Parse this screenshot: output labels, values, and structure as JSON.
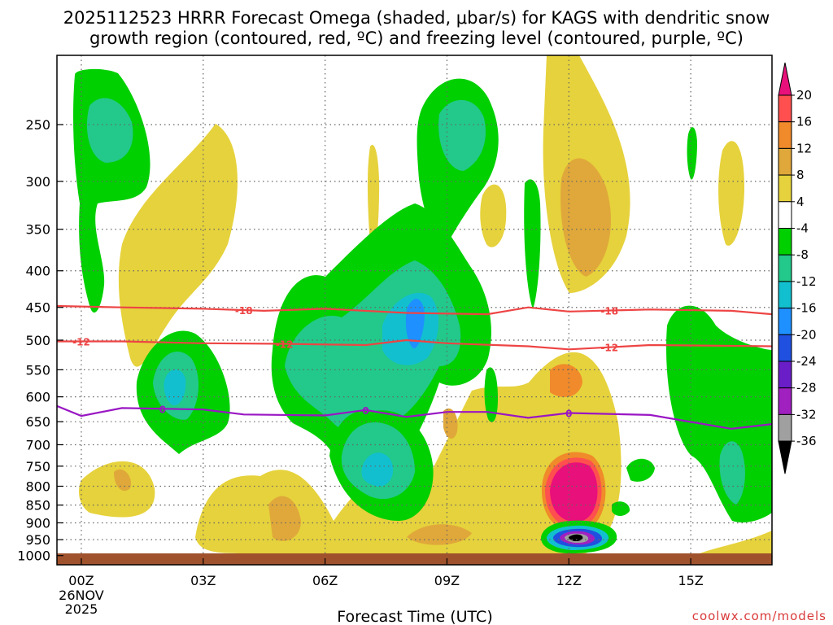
{
  "chart_data": {
    "type": "heatmap",
    "title_line1": "2025112523 HRRR Forecast Omega (shaded, μbar/s) for KAGS with dendritic snow",
    "title_line2": "growth region (contoured, red, ºC) and freezing level (contoured, purple, ºC)",
    "xlabel": "Forecast Time (UTC)",
    "credit": "coolwx.com/models",
    "x_ticks": [
      {
        "hour": 0,
        "label": "00Z",
        "sub1": "26NOV",
        "sub2": "2025"
      },
      {
        "hour": 3,
        "label": "03Z"
      },
      {
        "hour": 6,
        "label": "06Z"
      },
      {
        "hour": 9,
        "label": "09Z"
      },
      {
        "hour": 12,
        "label": "12Z"
      },
      {
        "hour": 15,
        "label": "15Z"
      }
    ],
    "x_range_hours": [
      -0.6,
      17
    ],
    "y_ticks": [
      250,
      300,
      350,
      400,
      450,
      500,
      550,
      600,
      650,
      700,
      750,
      800,
      850,
      900,
      950,
      1000
    ],
    "y_range_hpa": [
      200,
      1030
    ],
    "colorbar": {
      "labels": [
        "20",
        "16",
        "12",
        "8",
        "4",
        "-4",
        "-8",
        "-12",
        "-16",
        "-20",
        "-24",
        "-28",
        "-32",
        "-36"
      ],
      "colors": [
        "#ff4f4f",
        "#f08a2a",
        "#e0a83a",
        "#e6d23c",
        "#ffffff",
        "#00d000",
        "#22c98a",
        "#12bfcf",
        "#1e90ff",
        "#2050e0",
        "#6a1ec8",
        "#a020c0",
        "#a0a0a0"
      ],
      "top_color": "#e8107a",
      "bottom_color": "#000000"
    },
    "contours": [
      {
        "name": "-18C",
        "label": "-18",
        "color": "#ee4444",
        "points": [
          [
            -0.6,
            448
          ],
          [
            1,
            450
          ],
          [
            3,
            452
          ],
          [
            4.5,
            455
          ],
          [
            6,
            452
          ],
          [
            8,
            458
          ],
          [
            10,
            460
          ],
          [
            11,
            450
          ],
          [
            12,
            456
          ],
          [
            14,
            453
          ],
          [
            16,
            455
          ],
          [
            17,
            460
          ]
        ],
        "label_hours": [
          4,
          13
        ]
      },
      {
        "name": "-12C",
        "label": "-12",
        "color": "#ee4444",
        "points": [
          [
            -0.6,
            502
          ],
          [
            1,
            502
          ],
          [
            3,
            505
          ],
          [
            5,
            506
          ],
          [
            7,
            508
          ],
          [
            8,
            500
          ],
          [
            9,
            505
          ],
          [
            11,
            510
          ],
          [
            12,
            515
          ],
          [
            14,
            508
          ],
          [
            17,
            510
          ]
        ],
        "label_hours": [
          0,
          5,
          13
        ]
      },
      {
        "name": "0C",
        "label": "0",
        "color": "#9a16c4",
        "points": [
          [
            -0.6,
            618
          ],
          [
            0,
            638
          ],
          [
            1,
            622
          ],
          [
            3,
            625
          ],
          [
            4,
            635
          ],
          [
            6,
            637
          ],
          [
            7,
            626
          ],
          [
            8,
            640
          ],
          [
            9,
            630
          ],
          [
            10,
            630
          ],
          [
            11,
            642
          ],
          [
            12,
            632
          ],
          [
            14,
            636
          ],
          [
            16,
            665
          ],
          [
            17,
            655
          ]
        ],
        "label_hours": [
          2,
          7,
          12
        ]
      }
    ],
    "shaded_features": [
      {
        "name": "uplift-green-nw",
        "value": -8,
        "x_hours": [
          -0.6,
          1.3
        ],
        "y_hpa": [
          200,
          470
        ]
      },
      {
        "name": "uplift-green-upper-core",
        "value": -14,
        "x_hours": [
          0,
          0.9
        ],
        "y_hpa": [
          215,
          310
        ]
      },
      {
        "name": "uplift-green-mid-core",
        "value": -14,
        "x_hours": [
          7.1,
          8.8
        ],
        "y_hpa": [
          360,
          560
        ]
      },
      {
        "name": "uplift-blue-core",
        "value": -18,
        "x_hours": [
          7.7,
          8.2
        ],
        "y_hpa": [
          420,
          520
        ]
      },
      {
        "name": "uplift-green-upper-center",
        "value": -10,
        "x_hours": [
          8.3,
          10
        ],
        "y_hpa": [
          200,
          370
        ]
      },
      {
        "name": "uplift-green-low-center",
        "value": -12,
        "x_hours": [
          6.5,
          8
        ],
        "y_hpa": [
          640,
          850
        ]
      },
      {
        "name": "uplift-green-west-mid",
        "value": -14,
        "x_hours": [
          1.7,
          2.4
        ],
        "y_hpa": [
          580,
          660
        ]
      },
      {
        "name": "uplift-green-east",
        "value": -12,
        "x_hours": [
          15.8,
          16.6
        ],
        "y_hpa": [
          700,
          870
        ]
      },
      {
        "name": "subsidence-yellow-east-column",
        "value": 6,
        "x_hours": [
          10.8,
          13.5
        ],
        "y_hpa": [
          200,
          480
        ]
      },
      {
        "name": "subsidence-orange-upper",
        "value": 10,
        "x_hours": [
          11.6,
          12.9
        ],
        "y_hpa": [
          270,
          420
        ]
      },
      {
        "name": "subsidence-pink-low",
        "value": 22,
        "x_hours": [
          11.3,
          12.7
        ],
        "y_hpa": [
          750,
          880
        ]
      },
      {
        "name": "uplift-strong-near-surface",
        "value": -36,
        "x_hours": [
          11.4,
          12.9
        ],
        "y_hpa": [
          925,
          975
        ]
      },
      {
        "name": "subsidence-yellow-low-west",
        "value": 6,
        "x_hours": [
          -0.6,
          3
        ],
        "y_hpa": [
          740,
          920
        ]
      },
      {
        "name": "subsidence-yellow-upper-west",
        "value": 5,
        "x_hours": [
          0.5,
          4.5
        ],
        "y_hpa": [
          270,
          600
        ]
      }
    ],
    "ground_color": "#a0522d"
  }
}
